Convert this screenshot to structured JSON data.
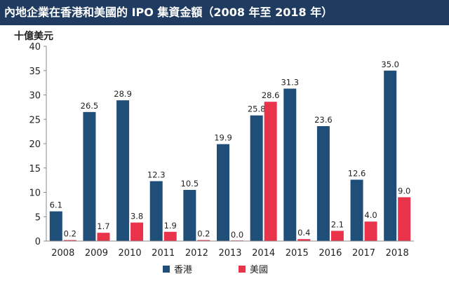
{
  "chart_data": {
    "type": "bar",
    "title": "內地企業在香港和美國的 IPO 集資金額（2008 年至 2018 年）",
    "ylabel": "十億美元",
    "xlabel": "",
    "ylim": [
      0,
      40
    ],
    "yticks": [
      "0",
      "5",
      "10",
      "15",
      "20",
      "25",
      "30",
      "35",
      "40"
    ],
    "categories": [
      "2008",
      "2009",
      "2010",
      "2011",
      "2012",
      "2013",
      "2014",
      "2015",
      "2016",
      "2017",
      "2018"
    ],
    "series": [
      {
        "name": "香港",
        "color": "#1f4e79",
        "values": [
          6.1,
          26.5,
          28.9,
          12.3,
          10.5,
          19.9,
          25.8,
          31.3,
          23.6,
          12.6,
          35.0
        ],
        "labels": [
          "6.1",
          "26.5",
          "28.9",
          "12.3",
          "10.5",
          "19.9",
          "25.8",
          "31.3",
          "23.6",
          "12.6",
          "35.0"
        ]
      },
      {
        "name": "美國",
        "color": "#e8334a",
        "values": [
          0.2,
          1.7,
          3.8,
          1.9,
          0.2,
          0.0,
          28.6,
          0.4,
          2.1,
          4.0,
          9.0
        ],
        "labels": [
          "0.2",
          "1.7",
          "3.8",
          "1.9",
          "0.2",
          "0.0",
          "28.6",
          "0.4",
          "2.1",
          "4.0",
          "9.0"
        ]
      }
    ],
    "legend_position": "bottom-center",
    "grid": false
  }
}
